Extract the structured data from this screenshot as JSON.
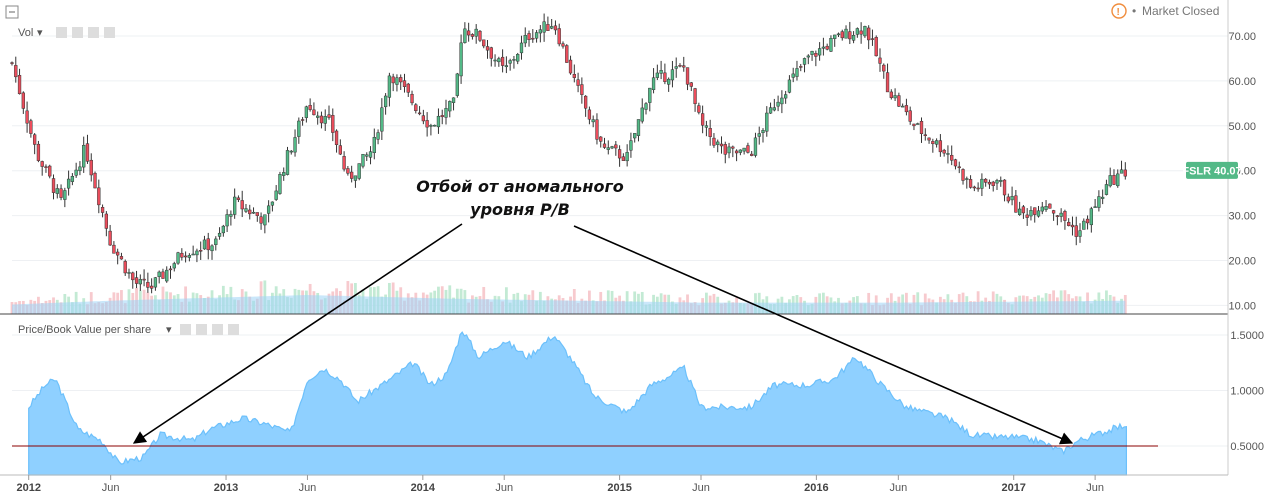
{
  "status": {
    "icon": "alert-icon",
    "text": "Market Closed"
  },
  "panes": {
    "top_label": "Vol",
    "bottom_label": "Price/Book Value per share"
  },
  "annotation": {
    "line1": "Отбой от аномального",
    "line2": "уровня P/B"
  },
  "colors": {
    "up": "#53b987",
    "down": "#eb4d5c",
    "area": "#8fd0ff",
    "area_line": "#6cc0fb",
    "ref_line": "#8b0000",
    "vol_area": "#9fd4f5",
    "price_label": "#53b987"
  },
  "chart_data": [
    {
      "type": "candlestick",
      "symbol": "FSLR",
      "last_price": "40.07",
      "y_ticks": [
        "70.00",
        "60.00",
        "50.00",
        "40.00",
        "30.00",
        "20.00",
        "10.00"
      ],
      "x_ticks": [
        "2012",
        "Jun",
        "2013",
        "Jun",
        "2014",
        "Jun",
        "2015",
        "Jun",
        "2016",
        "Jun",
        "2017",
        "Jun"
      ],
      "ylim": [
        7,
        75
      ],
      "x_range": [
        "2011-12-01",
        "2017-08-01"
      ],
      "grid": true,
      "close_keypoints": [
        [
          "2011-12-01",
          64
        ],
        [
          "2012-01-15",
          44
        ],
        [
          "2012-03-01",
          33
        ],
        [
          "2012-04-15",
          45
        ],
        [
          "2012-06-01",
          24
        ],
        [
          "2012-07-15",
          15
        ],
        [
          "2012-08-15",
          14
        ],
        [
          "2012-10-15",
          22
        ],
        [
          "2012-12-15",
          24
        ],
        [
          "2013-01-15",
          33
        ],
        [
          "2013-03-15",
          29
        ],
        [
          "2013-04-15",
          40
        ],
        [
          "2013-06-01",
          55
        ],
        [
          "2013-07-15",
          50
        ],
        [
          "2013-08-15",
          38
        ],
        [
          "2013-10-01",
          45
        ],
        [
          "2013-11-01",
          62
        ],
        [
          "2013-12-15",
          55
        ],
        [
          "2014-01-15",
          50
        ],
        [
          "2014-03-01",
          55
        ],
        [
          "2014-03-15",
          72
        ],
        [
          "2014-04-15",
          70
        ],
        [
          "2014-06-01",
          62
        ],
        [
          "2014-07-15",
          70
        ],
        [
          "2014-09-01",
          73
        ],
        [
          "2014-10-15",
          58
        ],
        [
          "2014-12-01",
          45
        ],
        [
          "2015-01-15",
          43
        ],
        [
          "2015-03-01",
          60
        ],
        [
          "2015-05-01",
          63
        ],
        [
          "2015-06-01",
          50
        ],
        [
          "2015-07-15",
          44
        ],
        [
          "2015-09-01",
          44
        ],
        [
          "2015-10-15",
          55
        ],
        [
          "2015-12-15",
          65
        ],
        [
          "2016-02-15",
          70
        ],
        [
          "2016-04-01",
          72
        ],
        [
          "2016-05-15",
          58
        ],
        [
          "2016-07-01",
          50
        ],
        [
          "2016-09-01",
          44
        ],
        [
          "2016-10-15",
          36
        ],
        [
          "2016-12-01",
          38
        ],
        [
          "2017-01-15",
          30
        ],
        [
          "2017-03-01",
          33
        ],
        [
          "2017-05-01",
          26
        ],
        [
          "2017-07-01",
          38
        ],
        [
          "2017-08-01",
          40
        ]
      ],
      "volume_keypoints": [
        [
          "2011-12-01",
          0.25
        ],
        [
          "2012-06-01",
          0.35
        ],
        [
          "2013-06-01",
          0.5
        ],
        [
          "2014-03-01",
          0.4
        ],
        [
          "2015-06-01",
          0.3
        ],
        [
          "2016-06-01",
          0.3
        ],
        [
          "2017-08-01",
          0.35
        ]
      ]
    },
    {
      "type": "area",
      "name": "Price/Book Value per share",
      "y_ticks": [
        "1.5000",
        "1.0000",
        "0.5000"
      ],
      "ylim": [
        0.25,
        1.6
      ],
      "reference_line": 0.5,
      "x_range": [
        "2012-01-01",
        "2017-08-01"
      ],
      "points": [
        [
          "2012-01-01",
          0.85
        ],
        [
          "2012-02-01",
          1.05
        ],
        [
          "2012-02-20",
          1.1
        ],
        [
          "2012-04-01",
          0.65
        ],
        [
          "2012-05-15",
          0.55
        ],
        [
          "2012-06-15",
          0.35
        ],
        [
          "2012-08-01",
          0.4
        ],
        [
          "2012-09-01",
          0.6
        ],
        [
          "2012-11-01",
          0.55
        ],
        [
          "2012-12-01",
          0.65
        ],
        [
          "2013-02-01",
          0.75
        ],
        [
          "2013-03-15",
          0.7
        ],
        [
          "2013-05-01",
          0.62
        ],
        [
          "2013-06-01",
          1.1
        ],
        [
          "2013-07-01",
          1.2
        ],
        [
          "2013-08-01",
          1.1
        ],
        [
          "2013-09-01",
          0.9
        ],
        [
          "2013-11-01",
          1.1
        ],
        [
          "2013-12-15",
          1.25
        ],
        [
          "2014-01-15",
          1.05
        ],
        [
          "2014-02-15",
          1.15
        ],
        [
          "2014-03-15",
          1.55
        ],
        [
          "2014-04-15",
          1.3
        ],
        [
          "2014-06-01",
          1.45
        ],
        [
          "2014-07-15",
          1.3
        ],
        [
          "2014-09-01",
          1.5
        ],
        [
          "2014-10-01",
          1.3
        ],
        [
          "2014-11-15",
          0.95
        ],
        [
          "2015-01-15",
          0.8
        ],
        [
          "2015-03-01",
          1.05
        ],
        [
          "2015-05-01",
          1.2
        ],
        [
          "2015-06-01",
          0.85
        ],
        [
          "2015-07-15",
          0.85
        ],
        [
          "2015-09-01",
          0.85
        ],
        [
          "2015-10-15",
          1.05
        ],
        [
          "2015-12-15",
          1.05
        ],
        [
          "2016-02-01",
          1.1
        ],
        [
          "2016-03-15",
          1.3
        ],
        [
          "2016-05-01",
          1.05
        ],
        [
          "2016-06-15",
          0.85
        ],
        [
          "2016-09-01",
          0.75
        ],
        [
          "2016-10-15",
          0.6
        ],
        [
          "2016-12-01",
          0.58
        ],
        [
          "2017-01-01",
          0.58
        ],
        [
          "2017-02-15",
          0.55
        ],
        [
          "2017-04-01",
          0.45
        ],
        [
          "2017-05-01",
          0.55
        ],
        [
          "2017-07-01",
          0.65
        ],
        [
          "2017-08-01",
          0.7
        ]
      ]
    }
  ]
}
